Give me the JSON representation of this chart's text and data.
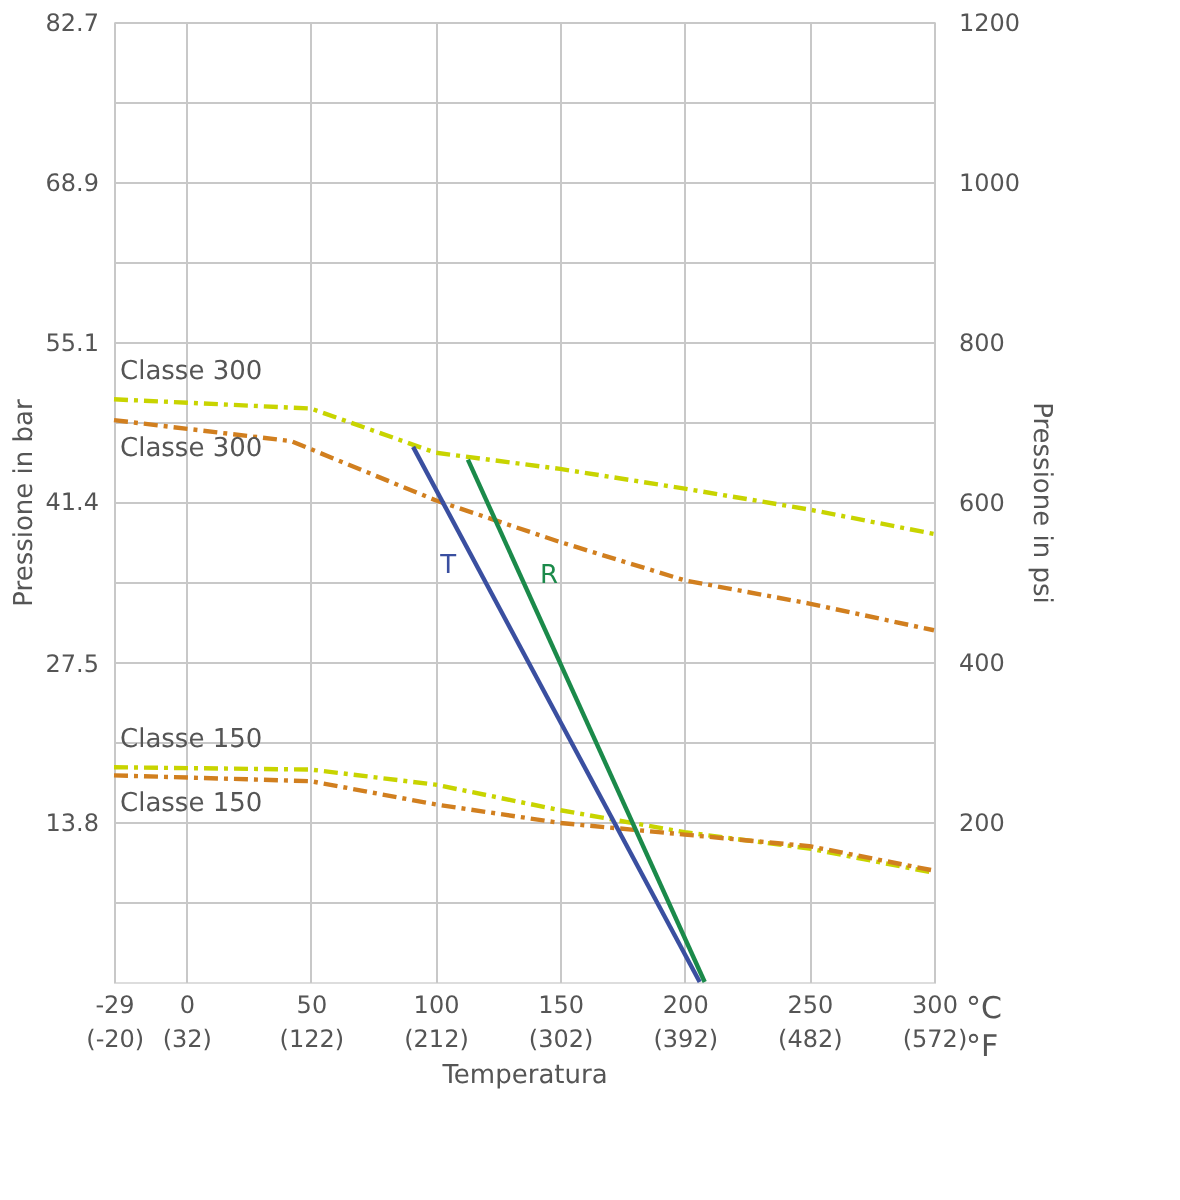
{
  "chart_data": {
    "type": "line",
    "xlabel": "Temperatura",
    "ylabel": "Pressione in bar",
    "y2label": "Pressione in psi",
    "xlim": [
      -29,
      300
    ],
    "xticks": [
      -29,
      0,
      50,
      100,
      150,
      200,
      250,
      300
    ],
    "x2lim": [
      -20.2,
      572
    ],
    "x2ticks": [
      {
        "value": -20,
        "label": "(-20)"
      },
      {
        "value": 32,
        "label": "(32)"
      },
      {
        "value": 122,
        "label": "(122)"
      },
      {
        "value": 212,
        "label": "(212)"
      },
      {
        "value": 302,
        "label": "(302)"
      },
      {
        "value": 392,
        "label": "(392)"
      },
      {
        "value": 482,
        "label": "(482)"
      },
      {
        "value": 572,
        "label": "(572)"
      }
    ],
    "ylim": [
      0,
      82.7
    ],
    "yticks": [
      {
        "value": 6.9,
        "label": null
      },
      13.8,
      {
        "value": 20.7,
        "label": null
      },
      27.5,
      {
        "value": 34.5,
        "label": null
      },
      41.4,
      {
        "value": 48.3,
        "label": null
      },
      55.1,
      {
        "value": 62.1,
        "label": null
      },
      68.9,
      {
        "value": 75.8,
        "label": null
      },
      82.7
    ],
    "y2lim": [
      0,
      1200
    ],
    "y2ticks": [
      200,
      400,
      600,
      800,
      1000,
      1200
    ],
    "grid": true,
    "line_style": "dashed",
    "marker": "none",
    "series": [
      {
        "name": "Classe 300",
        "color": "#c8d400",
        "x": [
          -29,
          50,
          100,
          150,
          200,
          250,
          300
        ],
        "values": [
          50.2,
          49.4,
          45.6,
          44.2,
          42.5,
          40.7,
          38.6
        ]
      },
      {
        "name": "Classe 300",
        "color": "#d17f1f",
        "x": [
          -29,
          42,
          100,
          150,
          200,
          250,
          300
        ],
        "values": [
          48.4,
          46.6,
          41.5,
          37.9,
          34.6,
          32.6,
          30.3
        ]
      },
      {
        "name": "Classe 150",
        "color": "#c8d400",
        "x": [
          -29,
          50,
          100,
          150,
          200,
          250,
          300
        ],
        "values": [
          18.5,
          18.3,
          17.0,
          14.8,
          12.9,
          11.5,
          9.4
        ]
      },
      {
        "name": "Classe 150",
        "color": "#d17f1f",
        "x": [
          -29,
          50,
          100,
          150,
          200,
          250,
          300
        ],
        "values": [
          17.8,
          17.3,
          15.3,
          13.7,
          12.7,
          11.7,
          9.6
        ]
      },
      {
        "name": "T",
        "color": "#3a4fa0",
        "line_style": "solid",
        "x": [
          91,
          206
        ],
        "values": [
          46.1,
          0
        ]
      },
      {
        "name": "R",
        "color": "#1b8a4a",
        "line_style": "solid",
        "x": [
          113,
          208
        ],
        "values": [
          45.0,
          0
        ]
      }
    ],
    "annotations": [
      "°C",
      "°F"
    ]
  }
}
